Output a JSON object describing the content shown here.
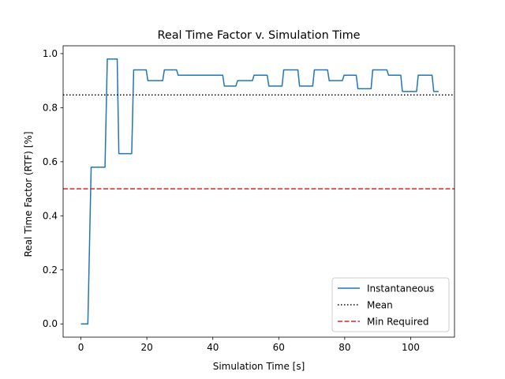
{
  "chart_data": {
    "type": "line",
    "title": "Real Time Factor v. Simulation Time",
    "xlabel": "Simulation Time [s]",
    "ylabel": "Real Time Factor (RTF) [%]",
    "xlim": [
      -5.4,
      113.3
    ],
    "ylim": [
      -0.049,
      1.029
    ],
    "xticks": [
      0,
      20,
      40,
      60,
      80,
      100
    ],
    "yticks": [
      0.0,
      0.2,
      0.4,
      0.6,
      0.8,
      1.0
    ],
    "xtick_labels": [
      "0",
      "20",
      "40",
      "60",
      "80",
      "100"
    ],
    "ytick_labels": [
      "0.0",
      "0.2",
      "0.4",
      "0.6",
      "0.8",
      "1.0"
    ],
    "grid": false,
    "legend_position": "lower-right",
    "series": [
      {
        "name": "Instantaneous",
        "style": "solid",
        "color": "#1f77b4",
        "points": [
          [
            0,
            0.0
          ],
          [
            2.1,
            0.0
          ],
          [
            3.1,
            0.58
          ],
          [
            7.3,
            0.58
          ],
          [
            8.0,
            0.98
          ],
          [
            11.0,
            0.98
          ],
          [
            11.5,
            0.63
          ],
          [
            15.4,
            0.63
          ],
          [
            16.0,
            0.94
          ],
          [
            19.8,
            0.94
          ],
          [
            20.3,
            0.9
          ],
          [
            24.8,
            0.9
          ],
          [
            25.3,
            0.94
          ],
          [
            29.0,
            0.94
          ],
          [
            29.5,
            0.92
          ],
          [
            43.0,
            0.92
          ],
          [
            43.5,
            0.88
          ],
          [
            47.0,
            0.88
          ],
          [
            47.5,
            0.9
          ],
          [
            52.0,
            0.9
          ],
          [
            52.5,
            0.92
          ],
          [
            56.5,
            0.92
          ],
          [
            57.0,
            0.88
          ],
          [
            61.0,
            0.88
          ],
          [
            61.5,
            0.94
          ],
          [
            65.8,
            0.94
          ],
          [
            66.3,
            0.88
          ],
          [
            70.3,
            0.88
          ],
          [
            70.8,
            0.94
          ],
          [
            74.8,
            0.94
          ],
          [
            75.3,
            0.9
          ],
          [
            79.3,
            0.9
          ],
          [
            79.8,
            0.92
          ],
          [
            83.5,
            0.92
          ],
          [
            84.0,
            0.87
          ],
          [
            88.0,
            0.87
          ],
          [
            88.5,
            0.94
          ],
          [
            92.8,
            0.94
          ],
          [
            93.3,
            0.92
          ],
          [
            97.0,
            0.92
          ],
          [
            97.5,
            0.86
          ],
          [
            101.8,
            0.86
          ],
          [
            102.3,
            0.92
          ],
          [
            106.5,
            0.92
          ],
          [
            107.0,
            0.86
          ],
          [
            108.5,
            0.86
          ]
        ]
      },
      {
        "name": "Mean",
        "style": "dotted",
        "color": "#000000",
        "y": 0.847
      },
      {
        "name": "Min Required",
        "style": "dashed",
        "color": "#d62728",
        "y": 0.5
      }
    ]
  }
}
